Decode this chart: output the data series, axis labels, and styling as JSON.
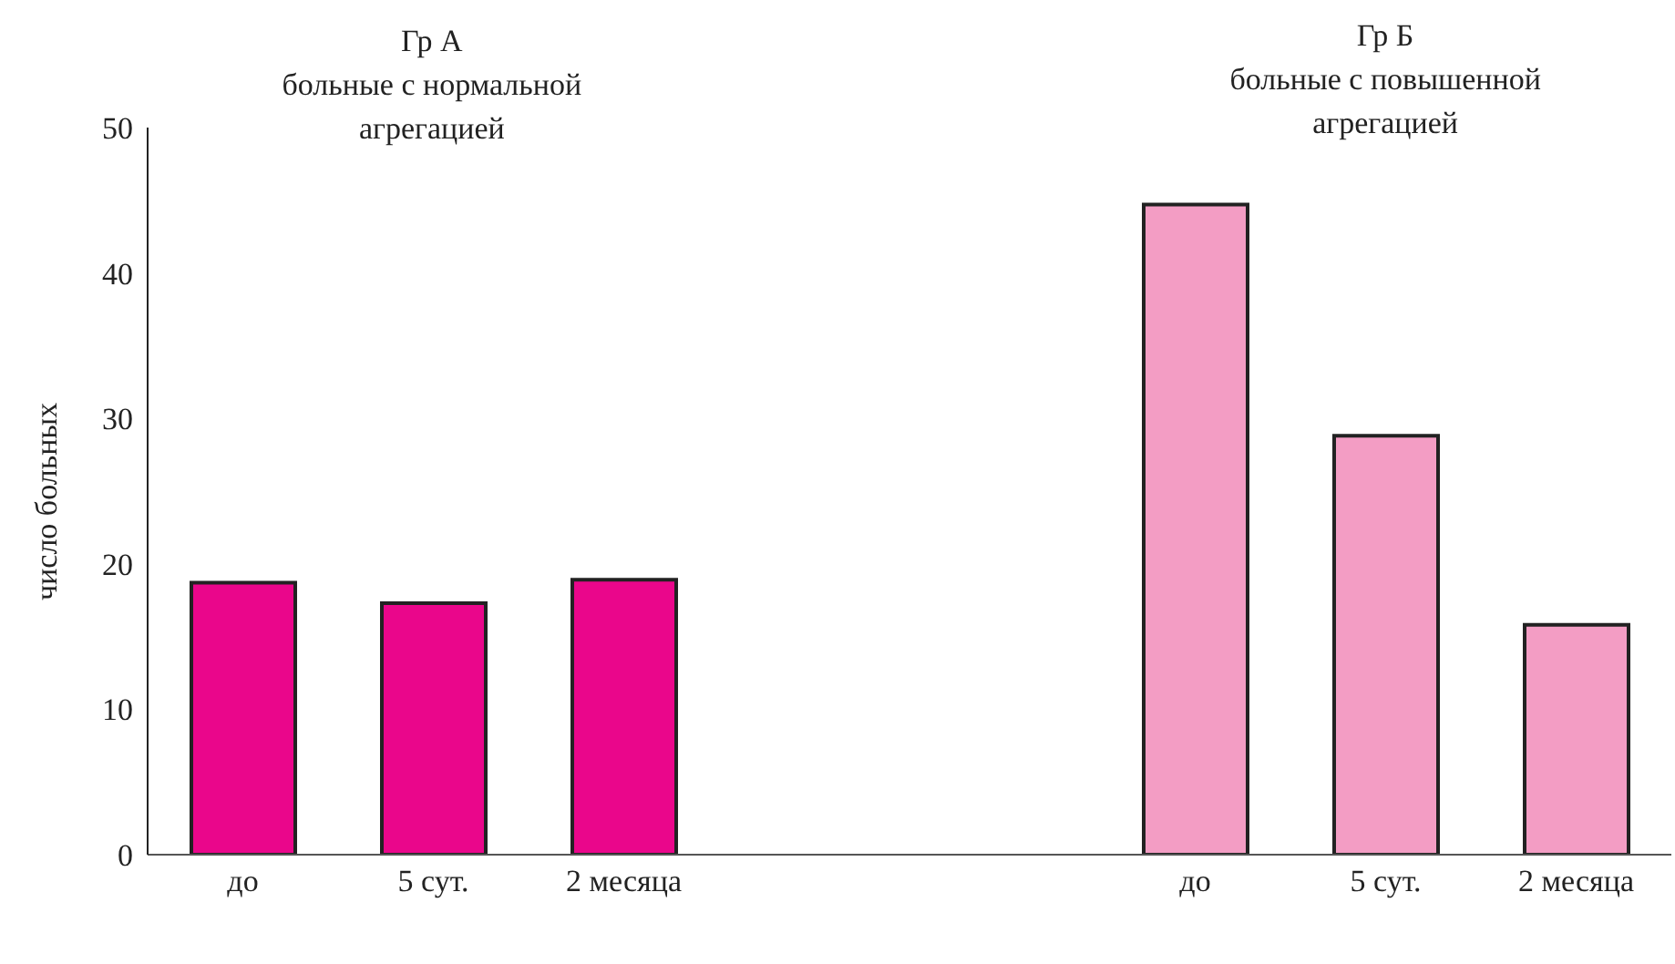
{
  "chart_data": {
    "type": "bar",
    "ylabel": "число больных",
    "categories": [
      "до",
      "5 сут.",
      "2 месяца",
      null,
      null,
      "до",
      "5 сут.",
      "2 месяца"
    ],
    "values": [
      18.7,
      17.3,
      18.9,
      null,
      null,
      44.7,
      28.8,
      15.8
    ],
    "colors": [
      "#ea068b",
      "#ea068b",
      "#ea068b",
      null,
      null,
      "#f39dc4",
      "#f39dc4",
      "#f39dc4"
    ],
    "annotations": [
      "Гр А\nбольные с нормальной\nагрегацией",
      "Гр Б\nбольные с повышенной\nагрегацией"
    ],
    "ylim": [
      0,
      50
    ],
    "yticks": [
      0,
      10,
      20,
      30,
      40,
      50
    ]
  }
}
